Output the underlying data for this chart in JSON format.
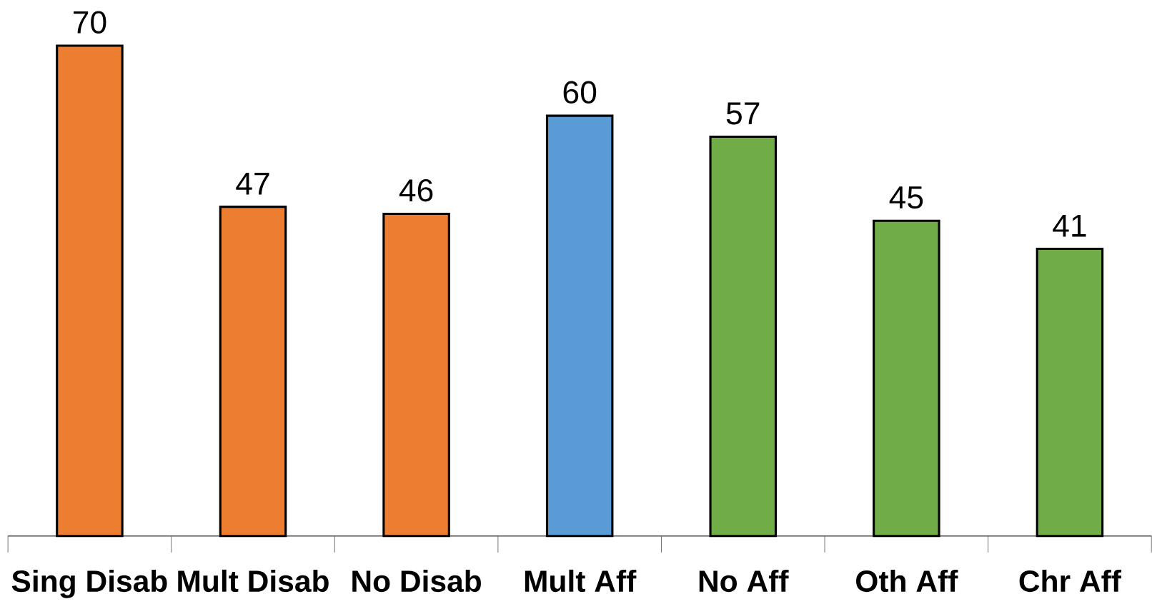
{
  "chart_data": {
    "type": "bar",
    "categories": [
      "Sing Disab",
      "Mult Disab",
      "No Disab",
      "Mult Aff",
      "No Aff",
      "Oth Aff",
      "Chr Aff"
    ],
    "values": [
      70,
      47,
      46,
      60,
      57,
      45,
      41
    ],
    "colors": [
      "#ed7d31",
      "#ed7d31",
      "#ed7d31",
      "#5b9bd5",
      "#70ad47",
      "#70ad47",
      "#70ad47"
    ],
    "data_labels": true
  }
}
